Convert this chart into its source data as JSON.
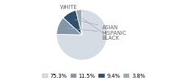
{
  "labels": [
    "WHITE",
    "HISPANIC",
    "ASIAN",
    "BLACK"
  ],
  "values": [
    75.3,
    11.5,
    9.4,
    3.8
  ],
  "colors": [
    "#d6dce4",
    "#8496aa",
    "#2e4f6e",
    "#9aacba"
  ],
  "legend_labels": [
    "75.3%",
    "11.5%",
    "9.4%",
    "3.8%"
  ],
  "legend_colors": [
    "#d6dce4",
    "#8496aa",
    "#2e4f6e",
    "#9aacba"
  ],
  "startangle": 90,
  "bg_color": "#ffffff",
  "text_color": "#666666",
  "line_color": "#aaaaaa",
  "fontsize": 4.8
}
